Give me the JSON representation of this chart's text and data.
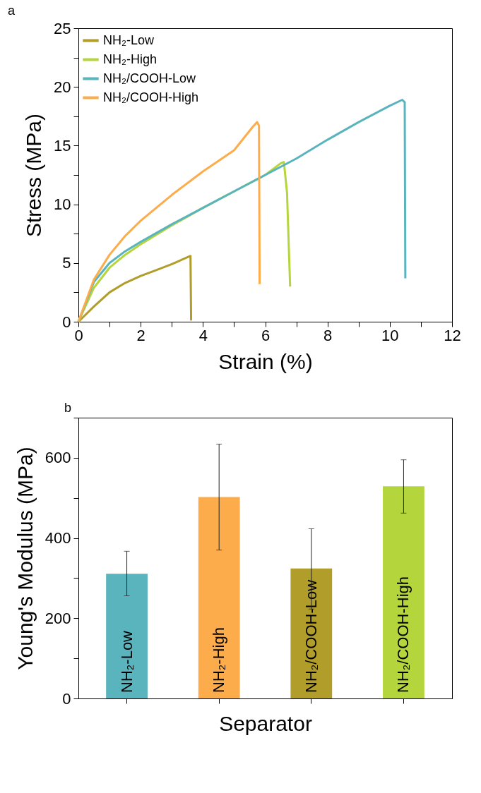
{
  "chart_data": [
    {
      "type": "line",
      "title": "a",
      "xlabel": "Strain (%)",
      "ylabel": "Stress (MPa)",
      "xlim": [
        0,
        12
      ],
      "ylim": [
        0,
        25
      ],
      "xticks": [
        0,
        {
          "value": 1,
          "label": null
        },
        2,
        {
          "value": 3,
          "label": null
        },
        4,
        {
          "value": 5,
          "label": null
        },
        6,
        {
          "value": 7,
          "label": null
        },
        8,
        {
          "value": 9,
          "label": null
        },
        10,
        {
          "value": 11,
          "label": null
        },
        12
      ],
      "yticks": [
        0,
        {
          "value": 2.5,
          "label": null
        },
        5,
        {
          "value": 7.5,
          "label": null
        },
        10,
        {
          "value": 12.5,
          "label": null
        },
        15,
        {
          "value": 17.5,
          "label": null
        },
        20,
        {
          "value": 22.5,
          "label": null
        },
        25
      ],
      "grid": false,
      "legend": "top left",
      "line_style": "solid",
      "marker": "none",
      "series": [
        {
          "name": "NH₂-Low",
          "color": "#b09d2a",
          "x": [
            0,
            0.5,
            1,
            1.5,
            2,
            2.5,
            3,
            3.55,
            3.6,
            3.62
          ],
          "values": [
            0,
            1.3,
            2.5,
            3.3,
            3.9,
            4.4,
            4.9,
            5.55,
            5.6,
            0.1
          ]
        },
        {
          "name": "NH₂-High",
          "color": "#b5d53d",
          "x": [
            0,
            0.5,
            1,
            1.5,
            2,
            3,
            4,
            5,
            6,
            6.5,
            6.6,
            6.7,
            6.8
          ],
          "values": [
            0,
            2.9,
            4.6,
            5.7,
            6.6,
            8.2,
            9.7,
            11.1,
            12.5,
            13.5,
            13.6,
            11,
            3.0
          ]
        },
        {
          "name": "NH₂/COOH-Low",
          "color": "#5ab4bd",
          "x": [
            0,
            0.5,
            1,
            1.5,
            2,
            3,
            4,
            5,
            6,
            7,
            8,
            9,
            10,
            10.4,
            10.48,
            10.5
          ],
          "values": [
            0,
            3.4,
            5.0,
            6.0,
            6.8,
            8.3,
            9.7,
            11.1,
            12.5,
            13.9,
            15.5,
            17.0,
            18.4,
            18.9,
            18.7,
            3.7
          ]
        },
        {
          "name": "NH₂/COOH-High",
          "color": "#fdac4b",
          "x": [
            0,
            0.5,
            1,
            1.5,
            2,
            3,
            4,
            5,
            5.6,
            5.74,
            5.8,
            5.82
          ],
          "values": [
            0,
            3.6,
            5.7,
            7.3,
            8.6,
            10.8,
            12.8,
            14.6,
            16.6,
            17.0,
            16.7,
            3.2
          ]
        }
      ]
    },
    {
      "type": "bar",
      "title": "b",
      "xlabel": "Separator",
      "ylabel": "Young's Modulus (MPa)",
      "ylim": [
        0,
        700
      ],
      "yticks": [
        0,
        {
          "value": 100,
          "label": null
        },
        200,
        {
          "value": 300,
          "label": null
        },
        400,
        {
          "value": 500,
          "label": null
        },
        600,
        {
          "value": 700,
          "label": null
        }
      ],
      "grid": false,
      "tick_labels": "y",
      "categories": [
        "NH₂-Low",
        "NH₂-High",
        "NH₂/COOH-Low",
        "NH₂/COOH-High"
      ],
      "values": [
        311,
        502,
        324,
        529
      ],
      "colors": [
        "#5ab4bd",
        "#fdac4b",
        "#b09d2a",
        "#b5d53d"
      ],
      "errors": [
        [
          256,
          367
        ],
        [
          370,
          634
        ],
        [
          223,
          423
        ],
        [
          462,
          595
        ]
      ]
    }
  ]
}
